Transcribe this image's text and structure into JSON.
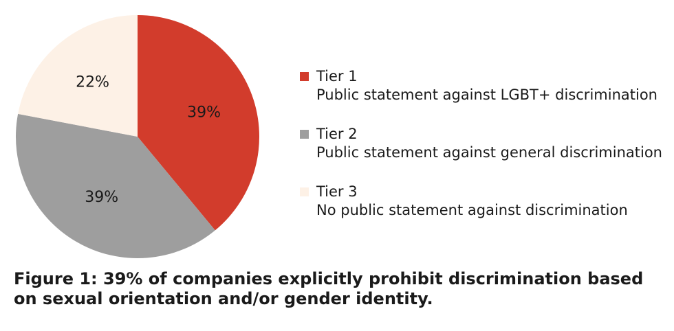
{
  "chart_data": {
    "type": "pie",
    "categories": [
      "Tier 1",
      "Tier 2",
      "Tier 3"
    ],
    "values": [
      39,
      39,
      22
    ],
    "value_labels": [
      "39%",
      "39%",
      "22%"
    ],
    "descriptions": [
      "Public statement against LGBT+ discrimination",
      "Public statement against general discrimination",
      "No public statement against discrimination"
    ],
    "colors": [
      "#d23c2c",
      "#9e9e9e",
      "#fdf1e6"
    ],
    "legend_position": "right",
    "caption": "Figure 1: 39% of companies explicitly prohibit discrimination based on sexual orientation and/or gender identity."
  }
}
